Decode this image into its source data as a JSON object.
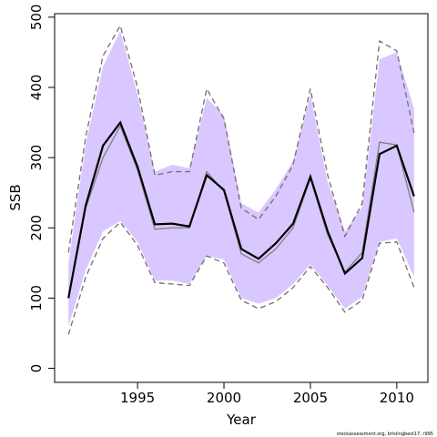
{
  "chart_data": {
    "type": "line",
    "x_label": "Year",
    "y_label": "SSB",
    "credit": "stockassessment.org, brislingbest17, r995",
    "x": [
      1991,
      1992,
      1993,
      1994,
      1995,
      1996,
      1997,
      1998,
      1999,
      2000,
      2001,
      2002,
      2003,
      2004,
      2005,
      2006,
      2007,
      2008,
      2009,
      2010,
      2011
    ],
    "xlim": [
      1990.2,
      2011.8
    ],
    "xticks": [
      1995,
      2000,
      2005,
      2010
    ],
    "ylim": [
      -20,
      505
    ],
    "yticks": [
      0,
      100,
      200,
      300,
      400,
      500
    ],
    "band": {
      "color": "#d9c8ff",
      "upper": [
        150,
        320,
        430,
        480,
        390,
        280,
        290,
        285,
        385,
        360,
        235,
        222,
        255,
        295,
        390,
        265,
        195,
        230,
        440,
        450,
        370
      ],
      "lower": [
        60,
        140,
        195,
        210,
        180,
        125,
        125,
        120,
        160,
        155,
        100,
        92,
        100,
        120,
        148,
        118,
        85,
        102,
        180,
        185,
        130
      ]
    },
    "series": [
      {
        "color": "#7a6a6a",
        "style": "dashed",
        "values": [
          165,
          330,
          445,
          488,
          400,
          275,
          280,
          280,
          398,
          355,
          228,
          212,
          245,
          290,
          398,
          275,
          188,
          235,
          466,
          452,
          335
        ]
      },
      {
        "color": "#7a6a6a",
        "style": "dashed",
        "values": [
          48,
          130,
          185,
          208,
          175,
          122,
          120,
          118,
          160,
          150,
          97,
          85,
          95,
          115,
          145,
          115,
          80,
          97,
          178,
          180,
          115
        ]
      },
      {
        "color": "#808080",
        "style": "solid",
        "values": [
          100,
          228,
          300,
          345,
          282,
          198,
          200,
          200,
          280,
          252,
          163,
          150,
          170,
          200,
          270,
          190,
          137,
          165,
          322,
          318,
          222
        ]
      },
      {
        "color": "#000000",
        "style": "thick",
        "values": [
          100,
          232,
          317,
          350,
          287,
          205,
          206,
          202,
          275,
          254,
          170,
          156,
          178,
          206,
          273,
          195,
          135,
          157,
          305,
          317,
          245
        ]
      }
    ]
  }
}
